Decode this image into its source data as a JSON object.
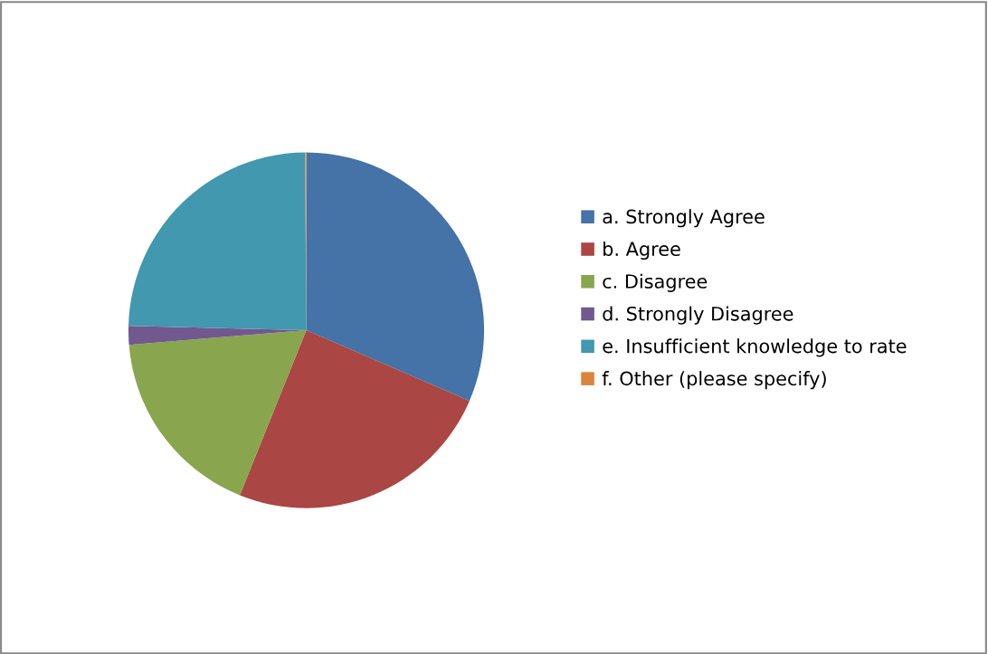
{
  "chart_data": {
    "type": "pie",
    "categories": [
      "a. Strongly Agree",
      "b. Agree",
      "c. Disagree",
      "d. Strongly Disagree",
      "e. Insufficient knowledge to rate",
      "f. Other (please specify)"
    ],
    "values": [
      31.5,
      24.6,
      17.6,
      1.7,
      24.5,
      0.1
    ],
    "colors": [
      "#4572a7",
      "#aa4643",
      "#89a54e",
      "#71588f",
      "#4198af",
      "#db843d"
    ],
    "legend": "right"
  }
}
